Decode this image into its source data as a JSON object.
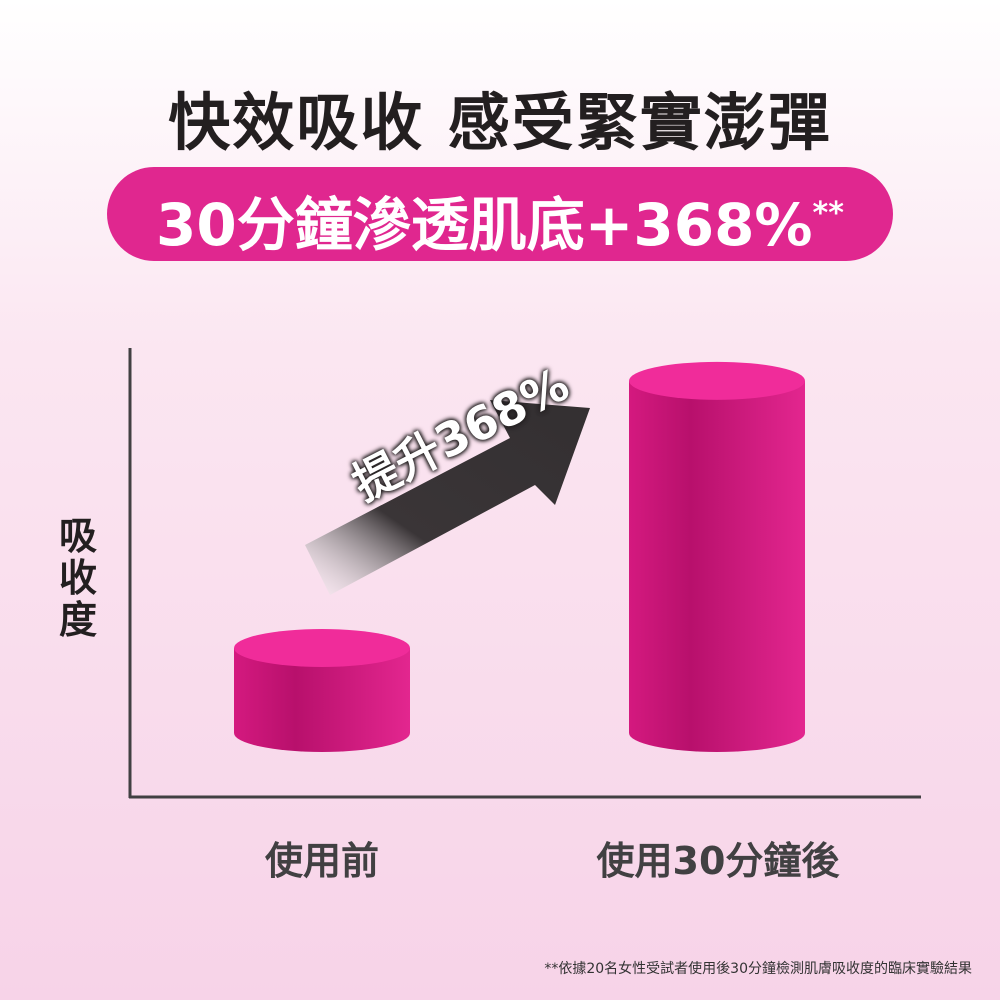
{
  "title": "快效吸收 感受緊實澎彈",
  "badge": {
    "text": "30分鐘滲透肌底+368%",
    "mark": "**",
    "color": "#e0278f"
  },
  "chart_data": {
    "type": "bar",
    "ylabel": "吸收度",
    "categories": [
      "使用前",
      "使用30分鐘後"
    ],
    "values": [
      100,
      468
    ],
    "annotation": "提升368%",
    "grid": false,
    "bar_color": "#e0278f"
  },
  "footnote": "**依據20名女性受試者使用後30分鐘檢測肌膚吸收度的臨床實驗結果"
}
